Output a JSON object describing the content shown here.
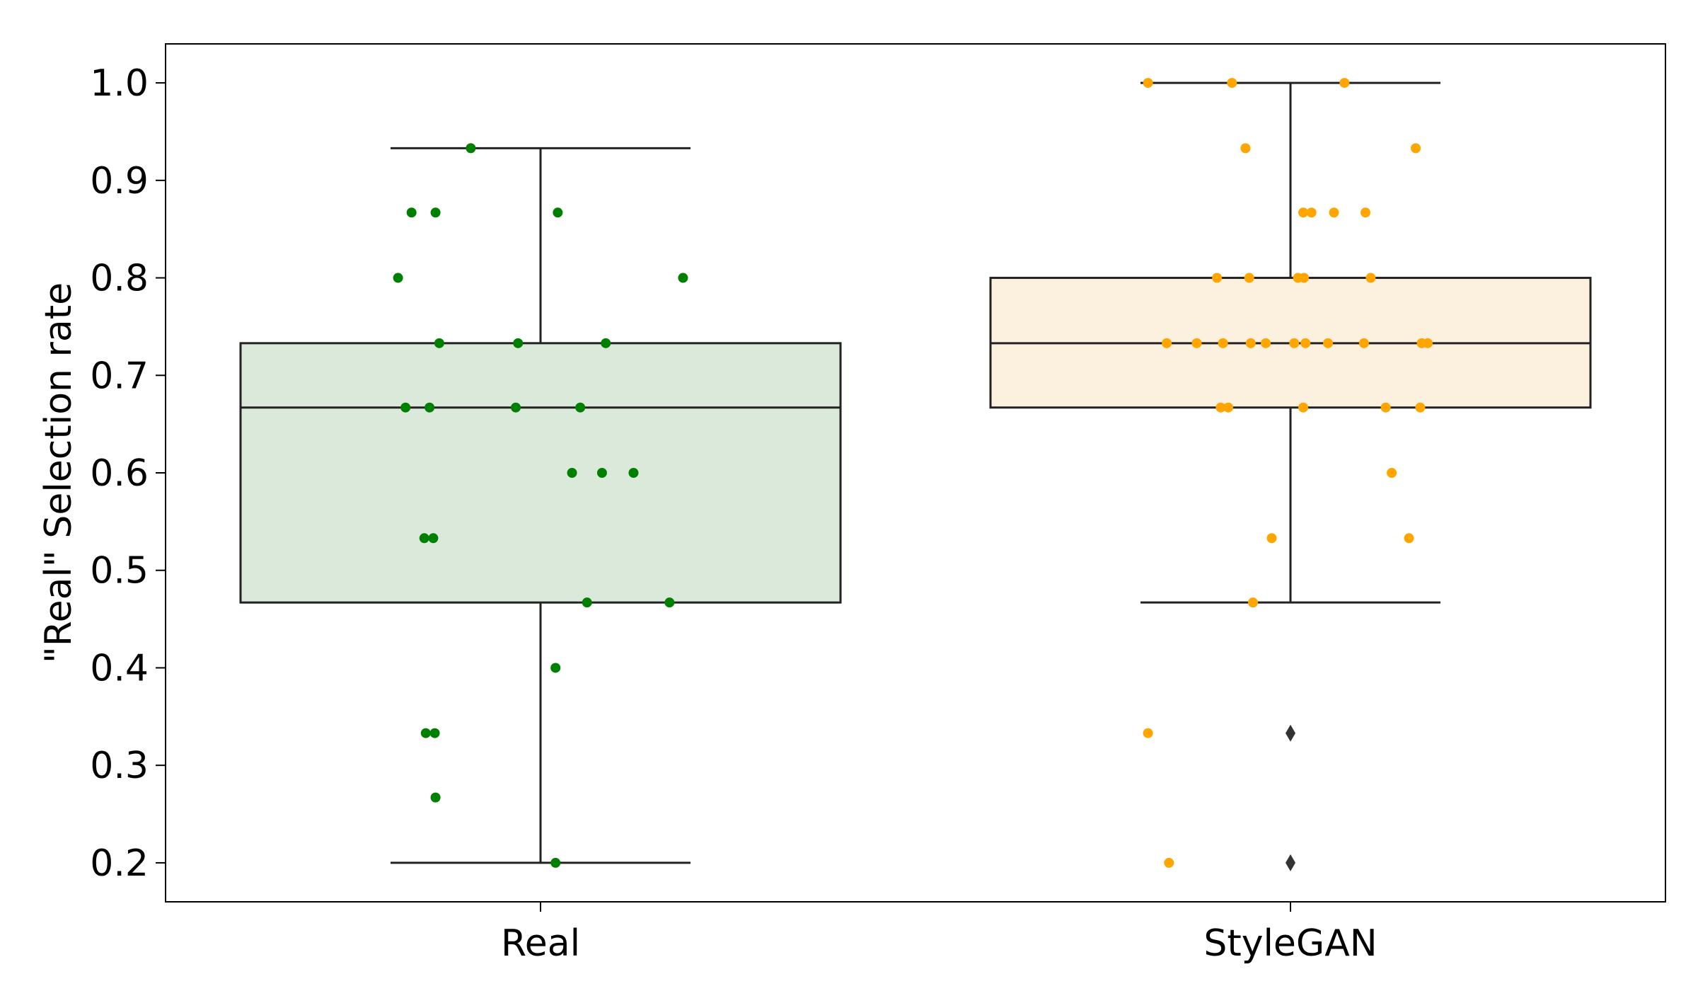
{
  "chart_data": {
    "type": "box",
    "title": "",
    "xlabel": "",
    "ylabel": "\"Real\" Selection rate",
    "ylim": [
      0.16,
      1.04
    ],
    "yticks": [
      "0.2",
      "0.3",
      "0.4",
      "0.5",
      "0.6",
      "0.7",
      "0.8",
      "0.9",
      "1.0"
    ],
    "grid": false,
    "legend": "none",
    "categories": [
      "Real",
      "StyleGAN"
    ],
    "boxes": [
      {
        "category": "Real",
        "q1": 0.467,
        "median": 0.667,
        "q3": 0.733,
        "whisker_low": 0.2,
        "whisker_high": 0.933,
        "fliers": [],
        "box_color": "#dbe9db",
        "point_color": "#008000",
        "points": [
          {
            "x": -0.093,
            "y": 0.933
          },
          {
            "x": -0.172,
            "y": 0.867
          },
          {
            "x": -0.14,
            "y": 0.867
          },
          {
            "x": 0.023,
            "y": 0.867
          },
          {
            "x": -0.19,
            "y": 0.8
          },
          {
            "x": 0.19,
            "y": 0.8
          },
          {
            "x": -0.135,
            "y": 0.733
          },
          {
            "x": -0.03,
            "y": 0.733
          },
          {
            "x": 0.087,
            "y": 0.733
          },
          {
            "x": -0.18,
            "y": 0.667
          },
          {
            "x": -0.148,
            "y": 0.667
          },
          {
            "x": -0.033,
            "y": 0.667
          },
          {
            "x": 0.053,
            "y": 0.667
          },
          {
            "x": 0.042,
            "y": 0.6
          },
          {
            "x": 0.082,
            "y": 0.6
          },
          {
            "x": 0.124,
            "y": 0.6
          },
          {
            "x": -0.155,
            "y": 0.533
          },
          {
            "x": -0.143,
            "y": 0.533
          },
          {
            "x": 0.062,
            "y": 0.467
          },
          {
            "x": 0.172,
            "y": 0.467
          },
          {
            "x": 0.02,
            "y": 0.4
          },
          {
            "x": -0.153,
            "y": 0.333
          },
          {
            "x": -0.141,
            "y": 0.333
          },
          {
            "x": -0.14,
            "y": 0.267
          },
          {
            "x": 0.02,
            "y": 0.2
          }
        ]
      },
      {
        "category": "StyleGAN",
        "q1": 0.667,
        "median": 0.733,
        "q3": 0.8,
        "whisker_low": 0.467,
        "whisker_high": 1.0,
        "fliers": [
          0.333,
          0.2
        ],
        "box_color": "#fcf0de",
        "point_color": "#ffa500",
        "points": [
          {
            "x": -0.19,
            "y": 1.0
          },
          {
            "x": -0.078,
            "y": 1.0
          },
          {
            "x": 0.072,
            "y": 1.0
          },
          {
            "x": -0.06,
            "y": 0.933
          },
          {
            "x": 0.167,
            "y": 0.933
          },
          {
            "x": 0.017,
            "y": 0.867
          },
          {
            "x": 0.028,
            "y": 0.867
          },
          {
            "x": 0.058,
            "y": 0.867
          },
          {
            "x": 0.1,
            "y": 0.867
          },
          {
            "x": -0.098,
            "y": 0.8
          },
          {
            "x": -0.055,
            "y": 0.8
          },
          {
            "x": 0.01,
            "y": 0.8
          },
          {
            "x": 0.018,
            "y": 0.8
          },
          {
            "x": 0.107,
            "y": 0.8
          },
          {
            "x": -0.165,
            "y": 0.733
          },
          {
            "x": -0.125,
            "y": 0.733
          },
          {
            "x": -0.09,
            "y": 0.733
          },
          {
            "x": -0.053,
            "y": 0.733
          },
          {
            "x": -0.033,
            "y": 0.733
          },
          {
            "x": 0.005,
            "y": 0.733
          },
          {
            "x": 0.02,
            "y": 0.733
          },
          {
            "x": 0.05,
            "y": 0.733
          },
          {
            "x": 0.098,
            "y": 0.733
          },
          {
            "x": 0.175,
            "y": 0.733
          },
          {
            "x": 0.183,
            "y": 0.733
          },
          {
            "x": -0.093,
            "y": 0.667
          },
          {
            "x": -0.083,
            "y": 0.667
          },
          {
            "x": 0.017,
            "y": 0.667
          },
          {
            "x": 0.127,
            "y": 0.667
          },
          {
            "x": 0.173,
            "y": 0.667
          },
          {
            "x": 0.135,
            "y": 0.6
          },
          {
            "x": -0.025,
            "y": 0.533
          },
          {
            "x": 0.158,
            "y": 0.533
          },
          {
            "x": -0.05,
            "y": 0.467
          },
          {
            "x": -0.19,
            "y": 0.333
          },
          {
            "x": -0.162,
            "y": 0.2
          }
        ]
      }
    ]
  }
}
